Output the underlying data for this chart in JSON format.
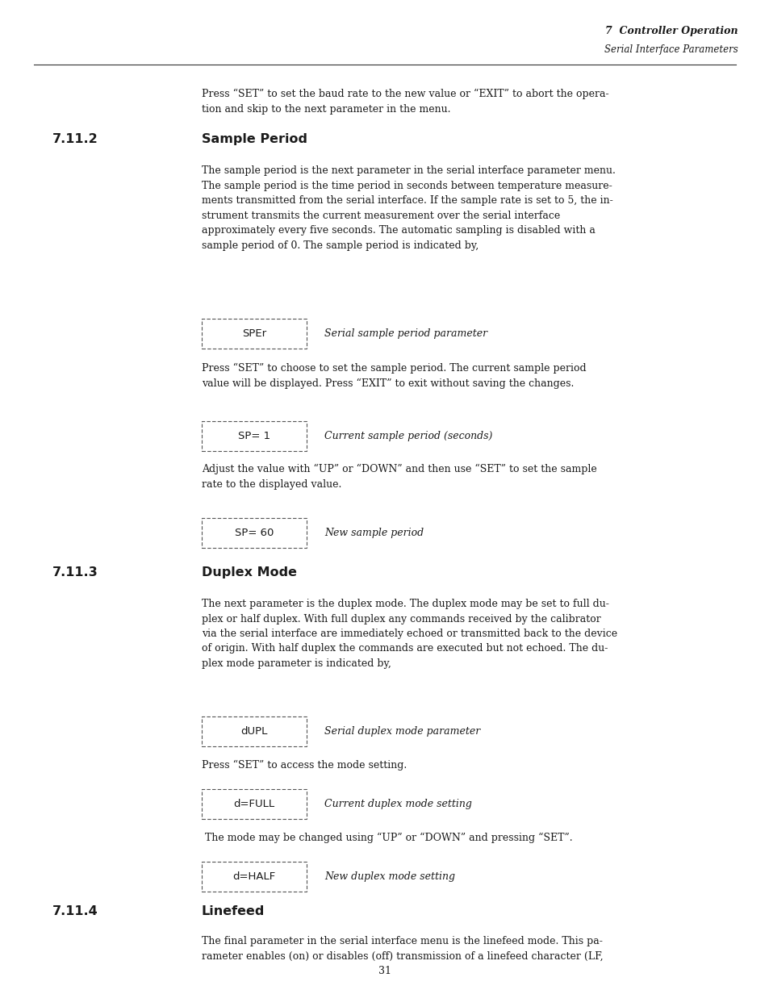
{
  "bg_color": "#ffffff",
  "header_title": "7  Controller Operation",
  "header_subtitle": "Serial Interface Parameters",
  "footer_page": "31",
  "page_width": 9.54,
  "page_height": 12.27
}
